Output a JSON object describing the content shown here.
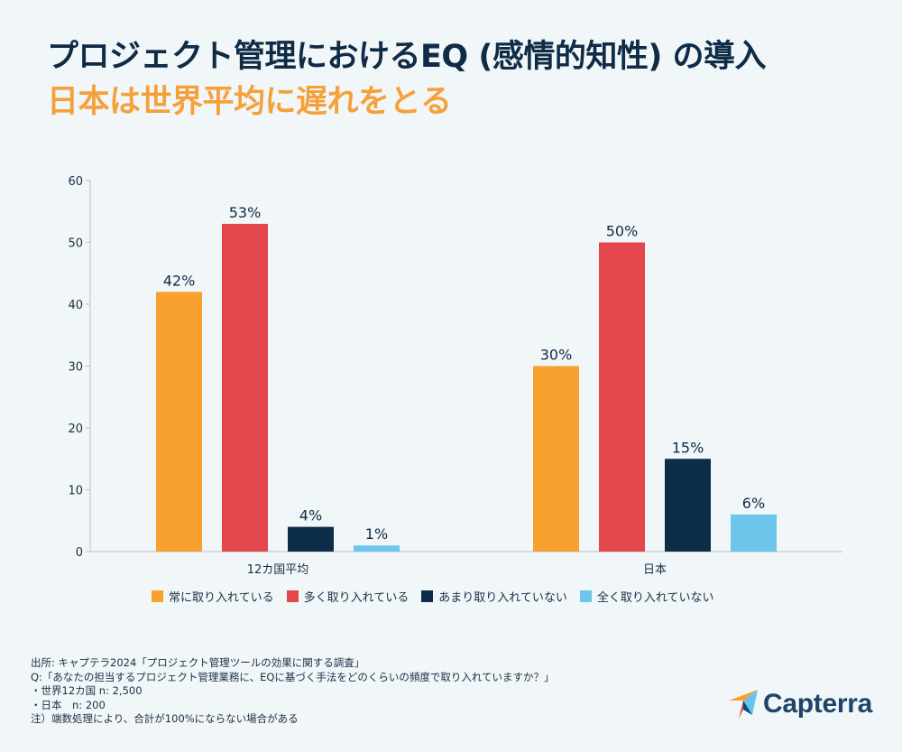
{
  "header": {
    "title": "プロジェクト管理におけるEQ (感情的知性) の導入",
    "subtitle": "日本は世界平均に遅れをとる"
  },
  "chart_data": {
    "type": "bar",
    "categories": [
      "12カ国平均",
      "日本"
    ],
    "series": [
      {
        "name": "常に取り入れている",
        "values": [
          42,
          30
        ],
        "labels": [
          "42%",
          "30%"
        ],
        "color": "#f9a12e"
      },
      {
        "name": "多く取り入れている",
        "values": [
          53,
          50
        ],
        "labels": [
          "53%",
          "50%"
        ],
        "color": "#e3464b"
      },
      {
        "name": "あまり取り入れていない",
        "values": [
          4,
          15
        ],
        "labels": [
          "4%",
          "15%"
        ],
        "color": "#0d2c47"
      },
      {
        "name": "全く取り入れていない",
        "values": [
          1,
          6
        ],
        "labels": [
          "1%",
          "6%"
        ],
        "color": "#6ec6ec"
      }
    ],
    "ylim": [
      0,
      60
    ],
    "yticks": [
      "0",
      "10",
      "20",
      "30",
      "40",
      "50",
      "60"
    ],
    "grid": false,
    "legend_position": "bottom"
  },
  "notes": [
    "出所: キャプテラ2024「プロジェクト管理ツールの効果に関する調査」",
    "Q:「あなたの担当するプロジェクト管理業務に、EQに基づく手法をどのくらいの頻度で取り入れていますか？」",
    "・世界12カ国 n: 2,500",
    "・日本　n: 200",
    "注）端数処理により、合計が100%にならない場合がある"
  ],
  "logo": {
    "text": "Capterra",
    "colors": [
      "#ff9d28",
      "#68c5ed",
      "#044d80",
      "#e54747"
    ]
  }
}
